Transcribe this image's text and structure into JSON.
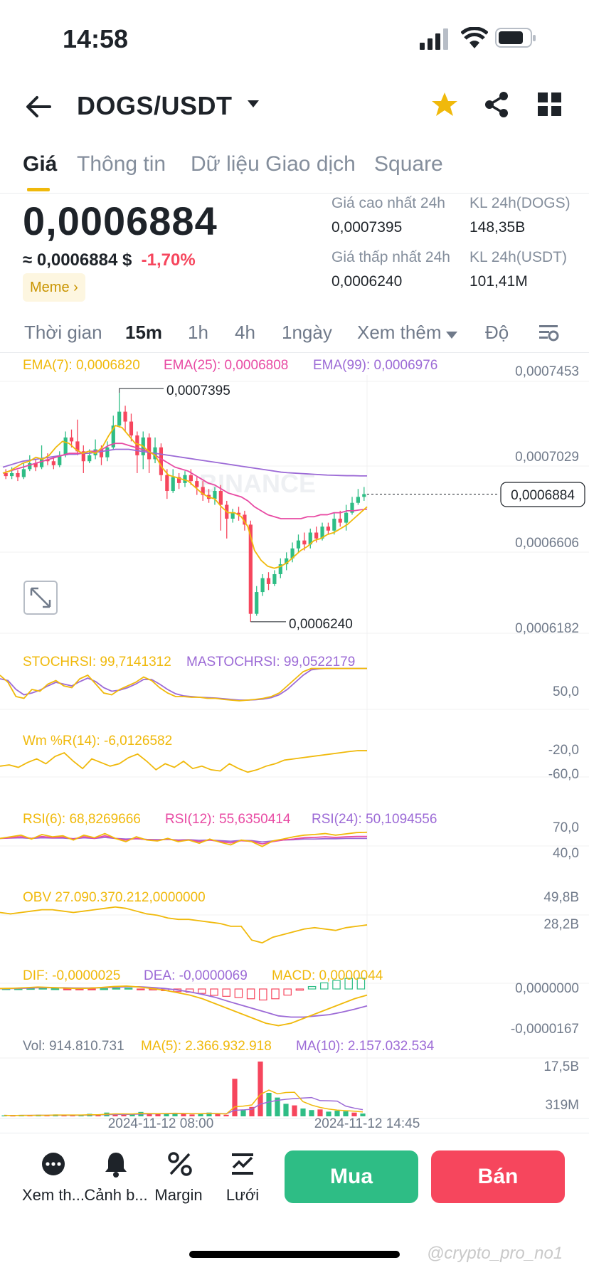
{
  "status_bar": {
    "time": "14:58"
  },
  "header": {
    "pair": "DOGS/USDT"
  },
  "tabs": [
    "Giá",
    "Thông tin",
    "Dữ liệu Giao dịch",
    "Square"
  ],
  "ticker": {
    "price": "0,0006884",
    "approx": "≈ 0,0006884 $",
    "change": "-1,70%",
    "tag": "Meme",
    "high_label": "Giá cao nhất 24h",
    "high": "0,0007395",
    "low_label": "Giá thấp nhất 24h",
    "low": "0,0006240",
    "vol_base_label": "KL 24h(DOGS)",
    "vol_base": "148,35B",
    "vol_quote_label": "KL 24h(USDT)",
    "vol_quote": "101,41M"
  },
  "intervals": [
    "Thời gian",
    "15m",
    "1h",
    "4h",
    "1ngày",
    "Xem thêm",
    "Độ"
  ],
  "colors": {
    "up": "#2ebd85",
    "down": "#f6465d",
    "accent": "#f0b90b",
    "ema7": "#f0b90b",
    "ema25": "#e84aa3",
    "ema99": "#9c6ad6"
  },
  "chart_data": {
    "type": "candlestick",
    "ema_labels": {
      "ema7": "EMA(7): 0,0006820",
      "ema25": "EMA(25): 0,0006808",
      "ema99": "EMA(99): 0,0006976"
    },
    "y_ticks": [
      "0,0007453",
      "0,0007029",
      "0,0006606",
      "0,0006182"
    ],
    "ylim": [
      0.0006182,
      0.0007453
    ],
    "high_marker": "0,0007395",
    "low_marker": "0,0006240",
    "last_price": "0,0006884",
    "x_ticks": [
      "2024-11-12 08:00",
      "2024-11-12 14:45"
    ],
    "candles": [
      [
        0.000699,
        0.0006975,
        0.000701,
        0.000696
      ],
      [
        0.0006975,
        0.000699,
        0.000702,
        0.000696
      ],
      [
        0.000699,
        0.000697,
        0.0007005,
        0.000695
      ],
      [
        0.000697,
        0.000701,
        0.000704,
        0.000696
      ],
      [
        0.000701,
        0.000704,
        0.000708,
        0.0007
      ],
      [
        0.000704,
        0.000702,
        0.000706,
        0.0007
      ],
      [
        0.000702,
        0.000706,
        0.000713,
        0.000701
      ],
      [
        0.000706,
        0.000705,
        0.000709,
        0.000703
      ],
      [
        0.000705,
        0.000703,
        0.000707,
        0.000701
      ],
      [
        0.000703,
        0.000708,
        0.00071,
        0.000702
      ],
      [
        0.000708,
        0.000717,
        0.00072,
        0.000707
      ],
      [
        0.000717,
        0.000715,
        0.000721,
        0.000712
      ],
      [
        0.000715,
        0.00071,
        0.000726,
        0.000708
      ],
      [
        0.00071,
        0.000705,
        0.000713,
        0.000699
      ],
      [
        0.000705,
        0.000708,
        0.000711,
        0.000704
      ],
      [
        0.000708,
        0.000711,
        0.000716,
        0.000706
      ],
      [
        0.000711,
        0.000707,
        0.000713,
        0.000703
      ],
      [
        0.000707,
        0.000712,
        0.000715,
        0.000705
      ],
      [
        0.000712,
        0.000723,
        0.000728,
        0.000711
      ],
      [
        0.000723,
        0.00073,
        0.0007395,
        0.000722
      ],
      [
        0.00073,
        0.000725,
        0.000733,
        0.00072
      ],
      [
        0.000725,
        0.000718,
        0.000729,
        0.000715
      ],
      [
        0.000718,
        0.000708,
        0.00072,
        0.000699
      ],
      [
        0.000708,
        0.000717,
        0.00072,
        0.000701
      ],
      [
        0.000717,
        0.000706,
        0.000719,
        0.000699
      ],
      [
        0.000706,
        0.000712,
        0.000717,
        0.000704
      ],
      [
        0.000712,
        0.000698,
        0.000714,
        0.000695
      ],
      [
        0.000698,
        0.00069,
        0.000701,
        0.000686
      ],
      [
        0.00069,
        0.000697,
        0.000701,
        0.000689
      ],
      [
        0.000697,
        0.000694,
        0.000699,
        0.000691
      ],
      [
        0.000694,
        0.000698,
        0.0007,
        0.000692
      ],
      [
        0.000698,
        0.000695,
        0.000701,
        0.000693
      ],
      [
        0.000695,
        0.000692,
        0.000697,
        0.000688
      ],
      [
        0.000692,
        0.000688,
        0.000695,
        0.000685
      ],
      [
        0.000688,
        0.000686,
        0.000691,
        0.000684
      ],
      [
        0.000686,
        0.00069,
        0.000692,
        0.000683
      ],
      [
        0.00069,
        0.000683,
        0.000693,
        0.00067
      ],
      [
        0.000683,
        0.000676,
        0.000685,
        0.000666
      ],
      [
        0.000676,
        0.000679,
        0.000681,
        0.000674
      ],
      [
        0.000679,
        0.000678,
        0.000682,
        0.000675
      ],
      [
        0.000678,
        0.000673,
        0.00068,
        0.00067
      ],
      [
        0.000673,
        0.000628,
        0.000675,
        0.000624
      ],
      [
        0.000628,
        0.000639,
        0.000642,
        0.000627
      ],
      [
        0.000639,
        0.000646,
        0.000648,
        0.000637
      ],
      [
        0.000646,
        0.000643,
        0.000649,
        0.00064
      ],
      [
        0.000643,
        0.000648,
        0.00065,
        0.000642
      ],
      [
        0.000648,
        0.000653,
        0.000656,
        0.000646
      ],
      [
        0.000653,
        0.000656,
        0.000659,
        0.00065
      ],
      [
        0.000656,
        0.000661,
        0.000664,
        0.000654
      ],
      [
        0.000661,
        0.000665,
        0.000668,
        0.000659
      ],
      [
        0.000665,
        0.000663,
        0.000669,
        0.00066
      ],
      [
        0.000663,
        0.000669,
        0.000671,
        0.000661
      ],
      [
        0.000669,
        0.000666,
        0.000672,
        0.000664
      ],
      [
        0.000666,
        0.000672,
        0.000674,
        0.000665
      ],
      [
        0.000672,
        0.00067,
        0.000674,
        0.000668
      ],
      [
        0.00067,
        0.000676,
        0.000679,
        0.000668
      ],
      [
        0.000676,
        0.000674,
        0.00068,
        0.000672
      ],
      [
        0.000674,
        0.000679,
        0.000683,
        0.00067
      ],
      [
        0.000679,
        0.000684,
        0.000687,
        0.000678
      ],
      [
        0.000684,
        0.000687,
        0.000691,
        0.000683
      ],
      [
        0.000687,
        0.0006884,
        0.000692,
        0.000685
      ]
    ],
    "ema7": [
      0.000699,
      0.0007,
      0.000702,
      0.000704,
      0.000705,
      0.000707,
      0.000706,
      0.000708,
      0.000712,
      0.000715,
      0.000714,
      0.000711,
      0.000709,
      0.00071,
      0.000709,
      0.000712,
      0.000718,
      0.000723,
      0.000722,
      0.000718,
      0.000714,
      0.000713,
      0.00071,
      0.000708,
      0.000702,
      0.000698,
      0.000697,
      0.000696,
      0.000695,
      0.000692,
      0.000689,
      0.000687,
      0.000686,
      0.000682,
      0.000679,
      0.000679,
      0.000677,
      0.000672,
      0.00066,
      0.000655,
      0.000652,
      0.000651,
      0.000652,
      0.000654,
      0.000657,
      0.00066,
      0.000662,
      0.000665,
      0.000666,
      0.000668,
      0.000669,
      0.000671,
      0.000673,
      0.000676,
      0.000679,
      0.000682
    ],
    "ema25": [
      0.000699,
      0.0007,
      0.000701,
      0.000702,
      0.000703,
      0.000704,
      0.000705,
      0.000706,
      0.000707,
      0.000708,
      0.000709,
      0.000709,
      0.000709,
      0.00071,
      0.00071,
      0.000711,
      0.000713,
      0.000714,
      0.000714,
      0.000713,
      0.000712,
      0.000711,
      0.00071,
      0.000708,
      0.000706,
      0.000704,
      0.000702,
      0.000701,
      0.0007,
      0.000698,
      0.000696,
      0.000694,
      0.000693,
      0.000691,
      0.000689,
      0.000688,
      0.000687,
      0.000685,
      0.000682,
      0.00068,
      0.000678,
      0.000677,
      0.000676,
      0.000676,
      0.000676,
      0.000676,
      0.000677,
      0.000677,
      0.000678,
      0.000678,
      0.000679,
      0.000679,
      0.00068,
      0.00068,
      0.0006805,
      0.0006808
    ],
    "ema99": [
      0.000702,
      0.000703,
      0.000704,
      0.000705,
      0.0007055,
      0.000706,
      0.0007065,
      0.000707,
      0.0007075,
      0.000708,
      0.0007085,
      0.0007085,
      0.000709,
      0.000709,
      0.0007095,
      0.00071,
      0.0007105,
      0.000711,
      0.000711,
      0.000711,
      0.0007105,
      0.00071,
      0.0007095,
      0.000709,
      0.0007085,
      0.000708,
      0.0007075,
      0.000707,
      0.0007065,
      0.000706,
      0.0007055,
      0.000705,
      0.0007045,
      0.000704,
      0.0007035,
      0.000703,
      0.0007025,
      0.000702,
      0.0007015,
      0.000701,
      0.0007005,
      0.0007,
      0.0006995,
      0.0006992,
      0.000699,
      0.0006988,
      0.0006986,
      0.0006984,
      0.0006982,
      0.000698,
      0.0006979,
      0.0006978,
      0.0006977,
      0.0006977,
      0.0006976,
      0.0006976
    ],
    "indicators": {
      "stochrsi": {
        "label": "STOCHRSI: 99,7141312",
        "ma_label": "MASTOCHRSI: 99,0522179",
        "tick": "50,0",
        "values": [
          80,
          60,
          20,
          15,
          40,
          35,
          55,
          65,
          50,
          45,
          70,
          80,
          55,
          30,
          25,
          40,
          50,
          60,
          75,
          65,
          45,
          30,
          20,
          20,
          18,
          18,
          15,
          15,
          12,
          10,
          8,
          10,
          12,
          15,
          20,
          30,
          50,
          70,
          90,
          99,
          99,
          99,
          99,
          99,
          99,
          99,
          99
        ],
        "ma": [
          70,
          65,
          40,
          25,
          30,
          38,
          50,
          60,
          55,
          50,
          62,
          72,
          62,
          45,
          35,
          38,
          45,
          55,
          68,
          68,
          55,
          40,
          28,
          22,
          20,
          18,
          17,
          16,
          14,
          12,
          10,
          10,
          11,
          13,
          17,
          25,
          40,
          60,
          80,
          95,
          98,
          99,
          99,
          99,
          99,
          99,
          99
        ]
      },
      "wr": {
        "label": "Wm %R(14): -6,0126582",
        "ticks": [
          "-20,0",
          "-60,0"
        ],
        "values": [
          -70,
          -65,
          -75,
          -55,
          -40,
          -60,
          -30,
          -15,
          -50,
          -80,
          -40,
          -55,
          -70,
          -60,
          -35,
          -20,
          -50,
          -85,
          -60,
          -75,
          -50,
          -80,
          -70,
          -85,
          -90,
          -60,
          -80,
          -95,
          -85,
          -70,
          -60,
          -45,
          -40,
          -35,
          -30,
          -25,
          -20,
          -15,
          -10,
          -6,
          -6
        ]
      },
      "rsi": {
        "label6": "RSI(6): 68,8269666",
        "label12": "RSI(12): 55,6350414",
        "label24": "RSI(24): 50,1094556",
        "ticks": [
          "70,0",
          "40,0"
        ],
        "rsi6": [
          50,
          55,
          60,
          48,
          62,
          55,
          58,
          45,
          60,
          52,
          65,
          50,
          40,
          55,
          45,
          42,
          50,
          40,
          45,
          35,
          48,
          38,
          30,
          45,
          40,
          25,
          42,
          48,
          55,
          60,
          62,
          65,
          60,
          64,
          68,
          69
        ],
        "rsi12": [
          50,
          52,
          55,
          50,
          56,
          52,
          54,
          48,
          55,
          50,
          58,
          50,
          45,
          50,
          46,
          44,
          48,
          43,
          45,
          40,
          45,
          40,
          36,
          43,
          41,
          33,
          40,
          45,
          48,
          52,
          53,
          55,
          53,
          55,
          56,
          56
        ],
        "rsi24": [
          50,
          51,
          52,
          50,
          52,
          51,
          51,
          49,
          52,
          50,
          53,
          50,
          48,
          49,
          47,
          46,
          47,
          45,
          46,
          44,
          45,
          43,
          41,
          44,
          43,
          39,
          42,
          45,
          46,
          48,
          48,
          49,
          49,
          50,
          50,
          50
        ]
      },
      "obv": {
        "label": "OBV 27.090.370.212,0000000",
        "ticks": [
          "49,8B",
          "28,2B"
        ],
        "values": [
          32,
          31,
          32,
          33,
          34,
          34,
          33,
          32,
          33,
          34,
          35,
          36,
          35,
          33,
          31,
          30,
          28,
          27,
          27,
          26,
          25,
          24,
          22,
          22,
          12,
          10,
          14,
          16,
          18,
          20,
          21,
          20,
          19,
          21,
          22,
          23
        ]
      },
      "macd": {
        "dif_label": "DIF: -0,0000025",
        "dea_label": "DEA: -0,0000069",
        "macd_label": "MACD: 0,0000044",
        "ticks": [
          "0,0000000",
          "-0,0000167"
        ],
        "dif": [
          0.2,
          0.3,
          0.5,
          0.8,
          0.6,
          0.4,
          0.2,
          0.3,
          0.6,
          1.0,
          1.2,
          0.8,
          0.2,
          -0.5,
          -1.5,
          -2.5,
          -4,
          -6,
          -8,
          -10,
          -12,
          -14,
          -15,
          -14,
          -12,
          -10,
          -8,
          -6,
          -4,
          -2.5
        ],
        "dea": [
          0.1,
          0.2,
          0.3,
          0.5,
          0.5,
          0.5,
          0.4,
          0.4,
          0.5,
          0.7,
          0.9,
          0.9,
          0.6,
          0.2,
          -0.4,
          -1.2,
          -2.2,
          -3.4,
          -5,
          -6.5,
          -8,
          -9.5,
          -11,
          -11.5,
          -11.5,
          -11,
          -10.5,
          -9.5,
          -8.3,
          -6.9
        ],
        "hist": [
          0.1,
          0.1,
          0.2,
          0.3,
          0.1,
          -0.1,
          -0.2,
          -0.1,
          0.1,
          0.3,
          0.3,
          -0.1,
          -0.4,
          -0.7,
          -1.1,
          -1.3,
          -1.8,
          -2.6,
          -3,
          -3.5,
          -4,
          -4.5,
          -4,
          -2.5,
          -0.5,
          1,
          2.5,
          3.5,
          4.3,
          4.4
        ]
      },
      "volume": {
        "vol_label": "Vol: 914.810.731",
        "ma5_label": "MA(5): 2.366.932.918",
        "ma10_label": "MA(10): 2.157.032.534",
        "ticks": [
          "17,5B",
          "319M"
        ],
        "values": [
          0.3,
          0.2,
          0.4,
          0.3,
          0.5,
          0.3,
          0.6,
          0.4,
          0.3,
          0.5,
          0.8,
          0.6,
          1.2,
          0.9,
          0.5,
          0.7,
          1.4,
          1.0,
          0.7,
          0.8,
          1.1,
          0.9,
          0.6,
          0.8,
          1.2,
          0.7,
          0.5,
          12,
          2.0,
          3.0,
          17.5,
          7.5,
          6.0,
          4.0,
          3.5,
          2.5,
          2.0,
          2.2,
          1.5,
          1.8,
          1.6,
          1.2,
          0.9
        ],
        "up": [
          1,
          0,
          1,
          0,
          1,
          0,
          1,
          0,
          0,
          1,
          1,
          0,
          1,
          0,
          0,
          1,
          1,
          0,
          0,
          1,
          1,
          0,
          0,
          1,
          1,
          0,
          0,
          0,
          1,
          0,
          0,
          1,
          1,
          1,
          0,
          1,
          1,
          0,
          1,
          1,
          1,
          0,
          1
        ]
      }
    }
  },
  "bottom_bar": {
    "more": "Xem th...",
    "alert": "Cảnh b...",
    "margin": "Margin",
    "grid": "Lưới",
    "buy": "Mua",
    "sell": "Bán"
  },
  "watermark": "@crypto_pro_no1"
}
